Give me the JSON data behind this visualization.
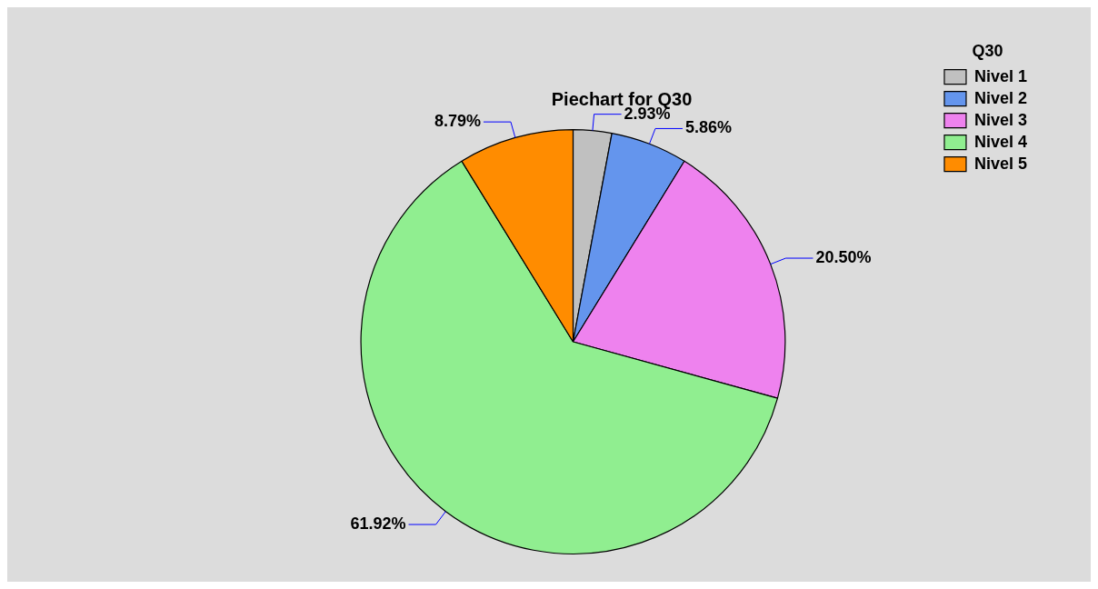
{
  "chart_data": {
    "type": "pie",
    "title": "Piechart for Q30",
    "legend_title": "Q30",
    "legend": "right",
    "categories": [
      "Nivel 1",
      "Nivel 2",
      "Nivel 3",
      "Nivel 4",
      "Nivel 5"
    ],
    "values": [
      2.93,
      5.86,
      20.5,
      61.92,
      8.79
    ],
    "colors": [
      "#c0c0c0",
      "#6495ed",
      "#ee82ee",
      "#90ee90",
      "#ff8c00"
    ],
    "value_labels": [
      "2.93%",
      "5.86%",
      "20.50%",
      "61.92%",
      "8.79%"
    ]
  }
}
